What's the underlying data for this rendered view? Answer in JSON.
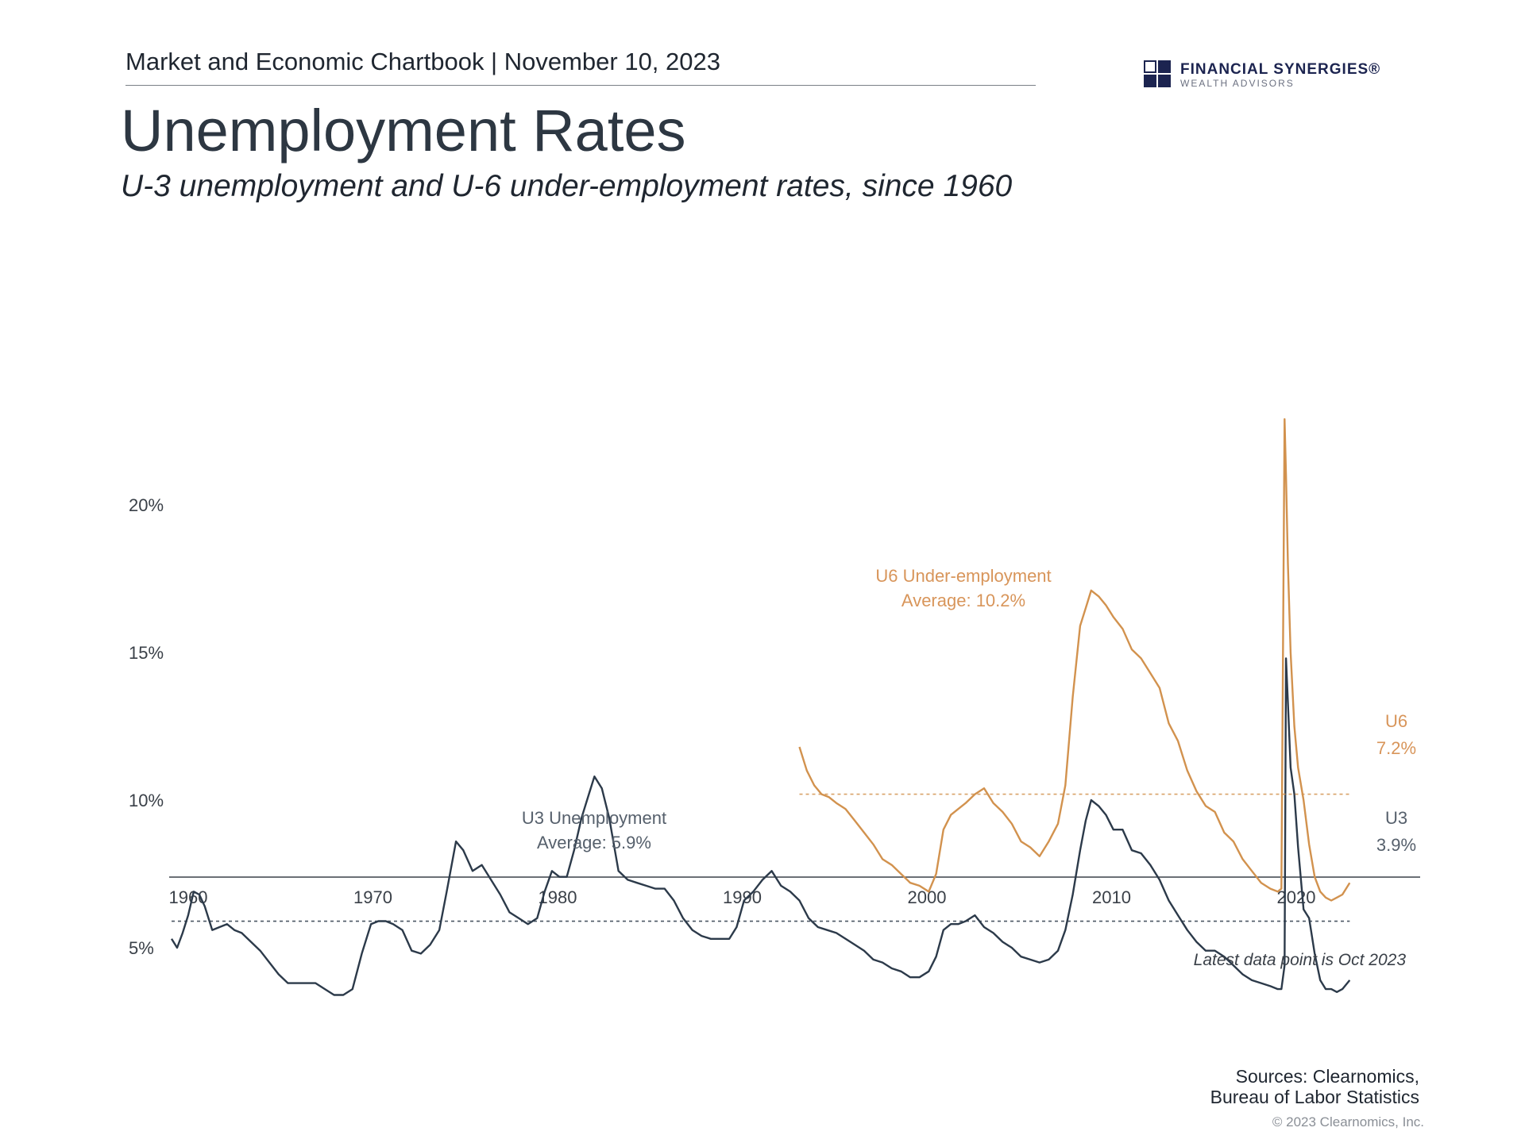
{
  "header": {
    "chartbook_line": "Market and Economic Chartbook | November 10, 2023",
    "brand_name": "FINANCIAL SYNERGIES®",
    "brand_sub": "WEALTH ADVISORS",
    "brand_color": "#1c2450"
  },
  "title": "Unemployment Rates",
  "subtitle": "U-3 unemployment and U-6 under-employment rates, since 1960",
  "footer": {
    "note": "Latest data point is Oct 2023",
    "sources_line1": "Sources: Clearnomics,",
    "sources_line2": "Bureau of Labor Statistics",
    "copyright": "© 2023 Clearnomics, Inc."
  },
  "chart_data": {
    "type": "line",
    "x_range": [
      1960,
      2023.8
    ],
    "ylim": [
      2.5,
      23
    ],
    "y_ticks": [
      5,
      10,
      15,
      20
    ],
    "y_tick_labels": [
      "5%",
      "10%",
      "15%",
      "20%"
    ],
    "x_ticks": [
      1960,
      1970,
      1980,
      1990,
      2000,
      2010,
      2020
    ],
    "x_tick_labels": [
      "1960",
      "1970",
      "1980",
      "1990",
      "2000",
      "2010",
      "2020"
    ],
    "grid": false,
    "series": [
      {
        "key": "u3",
        "color": "#2c3a4a",
        "average": 5.9,
        "annotation_line1": "U3 Unemployment",
        "annotation_line2": "Average: 5.9%",
        "end_label": "U3",
        "end_value_label": "3.9%",
        "x": [
          1960.0,
          1960.3,
          1960.6,
          1960.9,
          1961.2,
          1961.5,
          1961.8,
          1962.2,
          1962.6,
          1963.0,
          1963.4,
          1963.8,
          1964.3,
          1964.8,
          1965.3,
          1965.8,
          1966.3,
          1966.8,
          1967.3,
          1967.8,
          1968.3,
          1968.8,
          1969.3,
          1969.8,
          1970.3,
          1970.8,
          1971.2,
          1971.6,
          1972.0,
          1972.5,
          1973.0,
          1973.5,
          1974.0,
          1974.5,
          1974.9,
          1975.4,
          1975.8,
          1976.3,
          1976.8,
          1977.3,
          1977.8,
          1978.3,
          1978.8,
          1979.3,
          1979.8,
          1980.2,
          1980.6,
          1981.0,
          1981.4,
          1981.8,
          1982.2,
          1982.6,
          1982.9,
          1983.3,
          1983.7,
          1984.2,
          1984.7,
          1985.2,
          1985.7,
          1986.2,
          1986.7,
          1987.2,
          1987.7,
          1988.2,
          1988.7,
          1989.2,
          1989.7,
          1990.2,
          1990.6,
          1991.0,
          1991.5,
          1992.0,
          1992.5,
          1993.0,
          1993.5,
          1994.0,
          1994.5,
          1995.0,
          1995.5,
          1996.0,
          1996.5,
          1997.0,
          1997.5,
          1998.0,
          1998.5,
          1999.0,
          1999.5,
          2000.0,
          2000.5,
          2001.0,
          2001.4,
          2001.8,
          2002.2,
          2002.6,
          2003.0,
          2003.5,
          2004.0,
          2004.5,
          2005.0,
          2005.5,
          2006.0,
          2006.5,
          2007.0,
          2007.5,
          2008.0,
          2008.4,
          2008.8,
          2009.2,
          2009.5,
          2009.8,
          2010.2,
          2010.6,
          2011.0,
          2011.5,
          2012.0,
          2012.5,
          2013.0,
          2013.5,
          2014.0,
          2014.5,
          2015.0,
          2015.5,
          2016.0,
          2016.5,
          2017.0,
          2017.5,
          2018.0,
          2018.5,
          2019.0,
          2019.5,
          2019.9,
          2020.1,
          2020.27,
          2020.35,
          2020.45,
          2020.6,
          2020.8,
          2021.0,
          2021.3,
          2021.6,
          2021.9,
          2022.2,
          2022.5,
          2022.8,
          2023.1,
          2023.4,
          2023.8
        ],
        "values": [
          5.3,
          5.0,
          5.5,
          6.1,
          6.9,
          6.8,
          6.4,
          5.6,
          5.7,
          5.8,
          5.6,
          5.5,
          5.2,
          4.9,
          4.5,
          4.1,
          3.8,
          3.8,
          3.8,
          3.8,
          3.6,
          3.4,
          3.4,
          3.6,
          4.8,
          5.8,
          5.9,
          5.9,
          5.8,
          5.6,
          4.9,
          4.8,
          5.1,
          5.6,
          6.9,
          8.6,
          8.3,
          7.6,
          7.8,
          7.3,
          6.8,
          6.2,
          6.0,
          5.8,
          6.0,
          6.9,
          7.6,
          7.4,
          7.4,
          8.3,
          9.4,
          10.2,
          10.8,
          10.4,
          9.4,
          7.6,
          7.3,
          7.2,
          7.1,
          7.0,
          7.0,
          6.6,
          6.0,
          5.6,
          5.4,
          5.3,
          5.3,
          5.3,
          5.7,
          6.6,
          6.9,
          7.3,
          7.6,
          7.1,
          6.9,
          6.6,
          6.0,
          5.7,
          5.6,
          5.5,
          5.3,
          5.1,
          4.9,
          4.6,
          4.5,
          4.3,
          4.2,
          4.0,
          4.0,
          4.2,
          4.7,
          5.6,
          5.8,
          5.8,
          5.9,
          6.1,
          5.7,
          5.5,
          5.2,
          5.0,
          4.7,
          4.6,
          4.5,
          4.6,
          4.9,
          5.6,
          6.8,
          8.3,
          9.3,
          10.0,
          9.8,
          9.5,
          9.0,
          9.0,
          8.3,
          8.2,
          7.8,
          7.3,
          6.6,
          6.1,
          5.6,
          5.2,
          4.9,
          4.9,
          4.7,
          4.4,
          4.1,
          3.9,
          3.8,
          3.7,
          3.6,
          3.6,
          4.4,
          14.8,
          13.3,
          11.1,
          10.2,
          8.4,
          6.3,
          6.0,
          4.8,
          3.9,
          3.6,
          3.6,
          3.5,
          3.6,
          3.9
        ]
      },
      {
        "key": "u6",
        "color": "#d2924e",
        "average": 10.2,
        "annotation_line1": "U6 Under-employment",
        "annotation_line2": "Average: 10.2%",
        "end_label": "U6",
        "end_value_label": "7.2%",
        "x": [
          1994.0,
          1994.4,
          1994.8,
          1995.2,
          1995.6,
          1996.0,
          1996.5,
          1997.0,
          1997.5,
          1998.0,
          1998.5,
          1999.0,
          1999.5,
          2000.0,
          2000.5,
          2001.0,
          2001.4,
          2001.8,
          2002.2,
          2002.6,
          2003.0,
          2003.5,
          2004.0,
          2004.5,
          2005.0,
          2005.5,
          2006.0,
          2006.5,
          2007.0,
          2007.5,
          2008.0,
          2008.4,
          2008.8,
          2009.2,
          2009.5,
          2009.8,
          2010.2,
          2010.6,
          2011.0,
          2011.5,
          2012.0,
          2012.5,
          2013.0,
          2013.5,
          2014.0,
          2014.5,
          2015.0,
          2015.5,
          2016.0,
          2016.5,
          2017.0,
          2017.5,
          2018.0,
          2018.5,
          2019.0,
          2019.5,
          2019.9,
          2020.1,
          2020.27,
          2020.35,
          2020.45,
          2020.6,
          2020.8,
          2021.0,
          2021.3,
          2021.6,
          2021.9,
          2022.2,
          2022.5,
          2022.8,
          2023.1,
          2023.4,
          2023.8
        ],
        "values": [
          11.8,
          11.0,
          10.5,
          10.2,
          10.1,
          9.9,
          9.7,
          9.3,
          8.9,
          8.5,
          8.0,
          7.8,
          7.5,
          7.2,
          7.1,
          6.9,
          7.5,
          9.0,
          9.5,
          9.7,
          9.9,
          10.2,
          10.4,
          9.9,
          9.6,
          9.2,
          8.6,
          8.4,
          8.1,
          8.6,
          9.2,
          10.5,
          13.5,
          15.9,
          16.5,
          17.1,
          16.9,
          16.6,
          16.2,
          15.8,
          15.1,
          14.8,
          14.3,
          13.8,
          12.6,
          12.0,
          11.0,
          10.3,
          9.8,
          9.6,
          8.9,
          8.6,
          8.0,
          7.6,
          7.2,
          7.0,
          6.9,
          7.0,
          22.9,
          21.0,
          18.0,
          15.0,
          12.5,
          11.1,
          10.0,
          8.5,
          7.4,
          6.9,
          6.7,
          6.6,
          6.7,
          6.8,
          7.2
        ]
      }
    ]
  }
}
